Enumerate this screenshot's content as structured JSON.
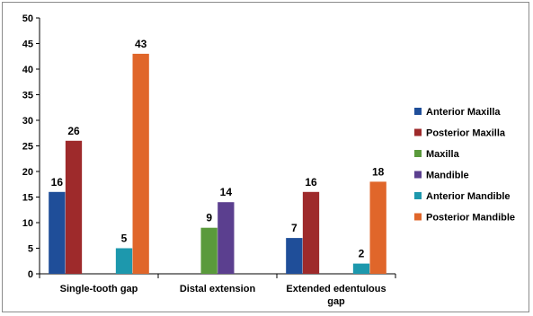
{
  "chart_data": {
    "type": "bar",
    "title": "",
    "xlabel": "",
    "ylabel": "",
    "ylim": [
      0,
      50
    ],
    "yticks": [
      0,
      5,
      10,
      15,
      20,
      25,
      30,
      35,
      40,
      45,
      50
    ],
    "grid": false,
    "legend_position": "right",
    "categories": [
      [
        "Single-tooth gap"
      ],
      [
        "Distal extension"
      ],
      [
        "Extended edentulous",
        "gap"
      ]
    ],
    "series": [
      {
        "name": "Anterior Maxilla",
        "color": "#1f4e99",
        "values": [
          16,
          null,
          7
        ]
      },
      {
        "name": "Posterior Maxilla",
        "color": "#9e2a2b",
        "values": [
          26,
          null,
          16
        ]
      },
      {
        "name": "Maxilla",
        "color": "#5a9a3c",
        "values": [
          null,
          9,
          null
        ]
      },
      {
        "name": "Mandible",
        "color": "#5b3f8f",
        "values": [
          null,
          14,
          null
        ]
      },
      {
        "name": "Anterior Mandible",
        "color": "#1d98ad",
        "values": [
          5,
          null,
          2
        ]
      },
      {
        "name": "Posterior Mandible",
        "color": "#e0662a",
        "values": [
          43,
          null,
          18
        ]
      }
    ]
  }
}
